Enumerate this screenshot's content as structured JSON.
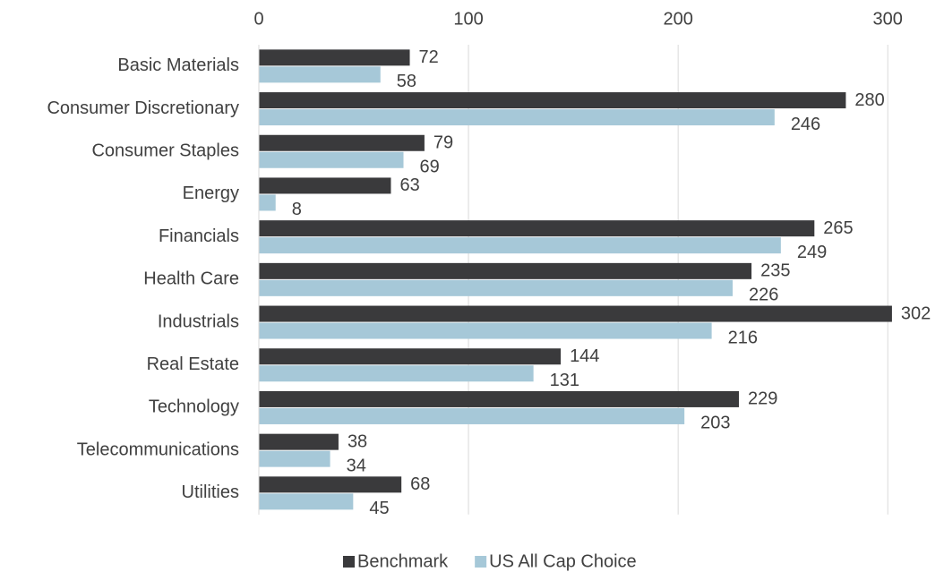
{
  "chart_data": {
    "type": "hbar",
    "categories": [
      "Basic Materials",
      "Consumer Discretionary",
      "Consumer Staples",
      "Energy",
      "Financials",
      "Health Care",
      "Industrials",
      "Real Estate",
      "Technology",
      "Telecommunications",
      "Utilities"
    ],
    "series": [
      {
        "name": "Benchmark",
        "color": "#3a3a3c",
        "values": [
          72,
          280,
          79,
          63,
          265,
          235,
          302,
          144,
          229,
          38,
          68
        ]
      },
      {
        "name": "US All Cap Choice",
        "color": "#a6c8d8",
        "values": [
          58,
          246,
          69,
          8,
          249,
          226,
          216,
          131,
          203,
          34,
          45
        ]
      }
    ],
    "xlim": [
      0,
      314
    ],
    "xticks": [
      0,
      100,
      200,
      300
    ],
    "grid": true,
    "legend": "bottom"
  }
}
